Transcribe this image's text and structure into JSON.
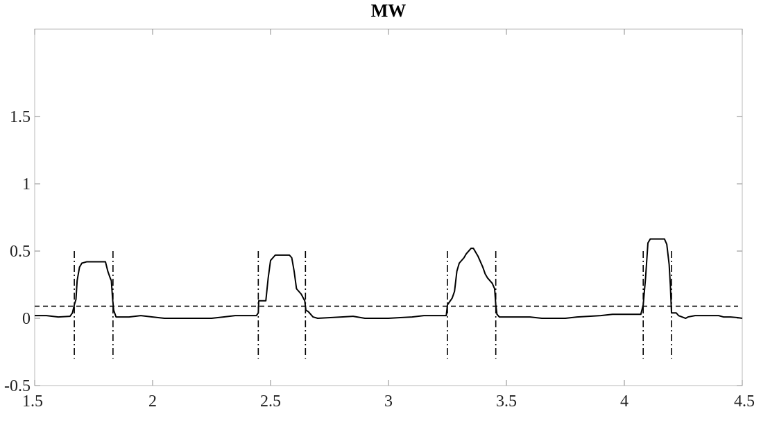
{
  "chart_data": {
    "type": "line",
    "title": "MW",
    "xlabel": "",
    "ylabel": "",
    "xlim": [
      1.5,
      4.5
    ],
    "ylim": [
      -0.5,
      2.15
    ],
    "grid": false,
    "x_ticks": [
      1.5,
      2,
      2.5,
      3,
      3.5,
      4,
      4.5
    ],
    "x_tick_labels": [
      "1.5",
      "2",
      "2.5",
      "3",
      "3.5",
      "4",
      "4.5"
    ],
    "y_ticks": [
      -0.5,
      0,
      0.5,
      1,
      1.5
    ],
    "y_tick_labels": [
      "-0.5",
      "0",
      "0.5",
      "1",
      "1.5"
    ],
    "threshold": 0.09,
    "event_markers": {
      "y_range": [
        -0.3,
        0.5
      ],
      "x": [
        1.668,
        1.832,
        2.448,
        2.648,
        3.25,
        3.455,
        4.08,
        4.2
      ]
    },
    "series": [
      {
        "values": [
          [
            1.5,
            0.02
          ],
          [
            1.55,
            0.02
          ],
          [
            1.6,
            0.01
          ],
          [
            1.65,
            0.015
          ],
          [
            1.66,
            0.04
          ],
          [
            1.668,
            0.1
          ],
          [
            1.675,
            0.14
          ],
          [
            1.68,
            0.28
          ],
          [
            1.69,
            0.38
          ],
          [
            1.7,
            0.41
          ],
          [
            1.72,
            0.42
          ],
          [
            1.78,
            0.42
          ],
          [
            1.8,
            0.42
          ],
          [
            1.81,
            0.35
          ],
          [
            1.82,
            0.3
          ],
          [
            1.825,
            0.28
          ],
          [
            1.83,
            0.15
          ],
          [
            1.835,
            0.06
          ],
          [
            1.845,
            0.01
          ],
          [
            1.9,
            0.01
          ],
          [
            1.95,
            0.02
          ],
          [
            2.0,
            0.01
          ],
          [
            2.05,
            0.0
          ],
          [
            2.1,
            0.0
          ],
          [
            2.2,
            0.0
          ],
          [
            2.25,
            0.0
          ],
          [
            2.3,
            0.01
          ],
          [
            2.35,
            0.02
          ],
          [
            2.4,
            0.02
          ],
          [
            2.44,
            0.02
          ],
          [
            2.448,
            0.04
          ],
          [
            2.45,
            0.13
          ],
          [
            2.48,
            0.13
          ],
          [
            2.49,
            0.3
          ],
          [
            2.5,
            0.43
          ],
          [
            2.52,
            0.47
          ],
          [
            2.58,
            0.47
          ],
          [
            2.59,
            0.45
          ],
          [
            2.6,
            0.35
          ],
          [
            2.61,
            0.22
          ],
          [
            2.63,
            0.18
          ],
          [
            2.645,
            0.13
          ],
          [
            2.65,
            0.06
          ],
          [
            2.66,
            0.05
          ],
          [
            2.68,
            0.01
          ],
          [
            2.7,
            0.0
          ],
          [
            2.8,
            0.01
          ],
          [
            2.85,
            0.015
          ],
          [
            2.9,
            0.0
          ],
          [
            3.0,
            0.0
          ],
          [
            3.05,
            0.005
          ],
          [
            3.1,
            0.01
          ],
          [
            3.15,
            0.02
          ],
          [
            3.2,
            0.02
          ],
          [
            3.245,
            0.02
          ],
          [
            3.25,
            0.1
          ],
          [
            3.27,
            0.15
          ],
          [
            3.28,
            0.2
          ],
          [
            3.29,
            0.35
          ],
          [
            3.3,
            0.41
          ],
          [
            3.32,
            0.45
          ],
          [
            3.33,
            0.48
          ],
          [
            3.35,
            0.52
          ],
          [
            3.36,
            0.52
          ],
          [
            3.38,
            0.46
          ],
          [
            3.4,
            0.38
          ],
          [
            3.41,
            0.33
          ],
          [
            3.42,
            0.3
          ],
          [
            3.44,
            0.26
          ],
          [
            3.45,
            0.22
          ],
          [
            3.455,
            0.1
          ],
          [
            3.46,
            0.03
          ],
          [
            3.47,
            0.01
          ],
          [
            3.5,
            0.01
          ],
          [
            3.55,
            0.01
          ],
          [
            3.6,
            0.01
          ],
          [
            3.65,
            0.0
          ],
          [
            3.7,
            0.0
          ],
          [
            3.75,
            0.0
          ],
          [
            3.8,
            0.01
          ],
          [
            3.85,
            0.015
          ],
          [
            3.9,
            0.02
          ],
          [
            3.95,
            0.03
          ],
          [
            4.0,
            0.03
          ],
          [
            4.07,
            0.03
          ],
          [
            4.08,
            0.1
          ],
          [
            4.085,
            0.2
          ],
          [
            4.09,
            0.3
          ],
          [
            4.1,
            0.56
          ],
          [
            4.11,
            0.59
          ],
          [
            4.17,
            0.59
          ],
          [
            4.18,
            0.55
          ],
          [
            4.19,
            0.4
          ],
          [
            4.195,
            0.25
          ],
          [
            4.2,
            0.04
          ],
          [
            4.22,
            0.04
          ],
          [
            4.23,
            0.02
          ],
          [
            4.26,
            0.0
          ],
          [
            4.27,
            0.01
          ],
          [
            4.3,
            0.02
          ],
          [
            4.35,
            0.02
          ],
          [
            4.4,
            0.02
          ],
          [
            4.42,
            0.01
          ],
          [
            4.45,
            0.01
          ],
          [
            4.48,
            0.005
          ],
          [
            4.5,
            0.0
          ]
        ]
      }
    ]
  }
}
